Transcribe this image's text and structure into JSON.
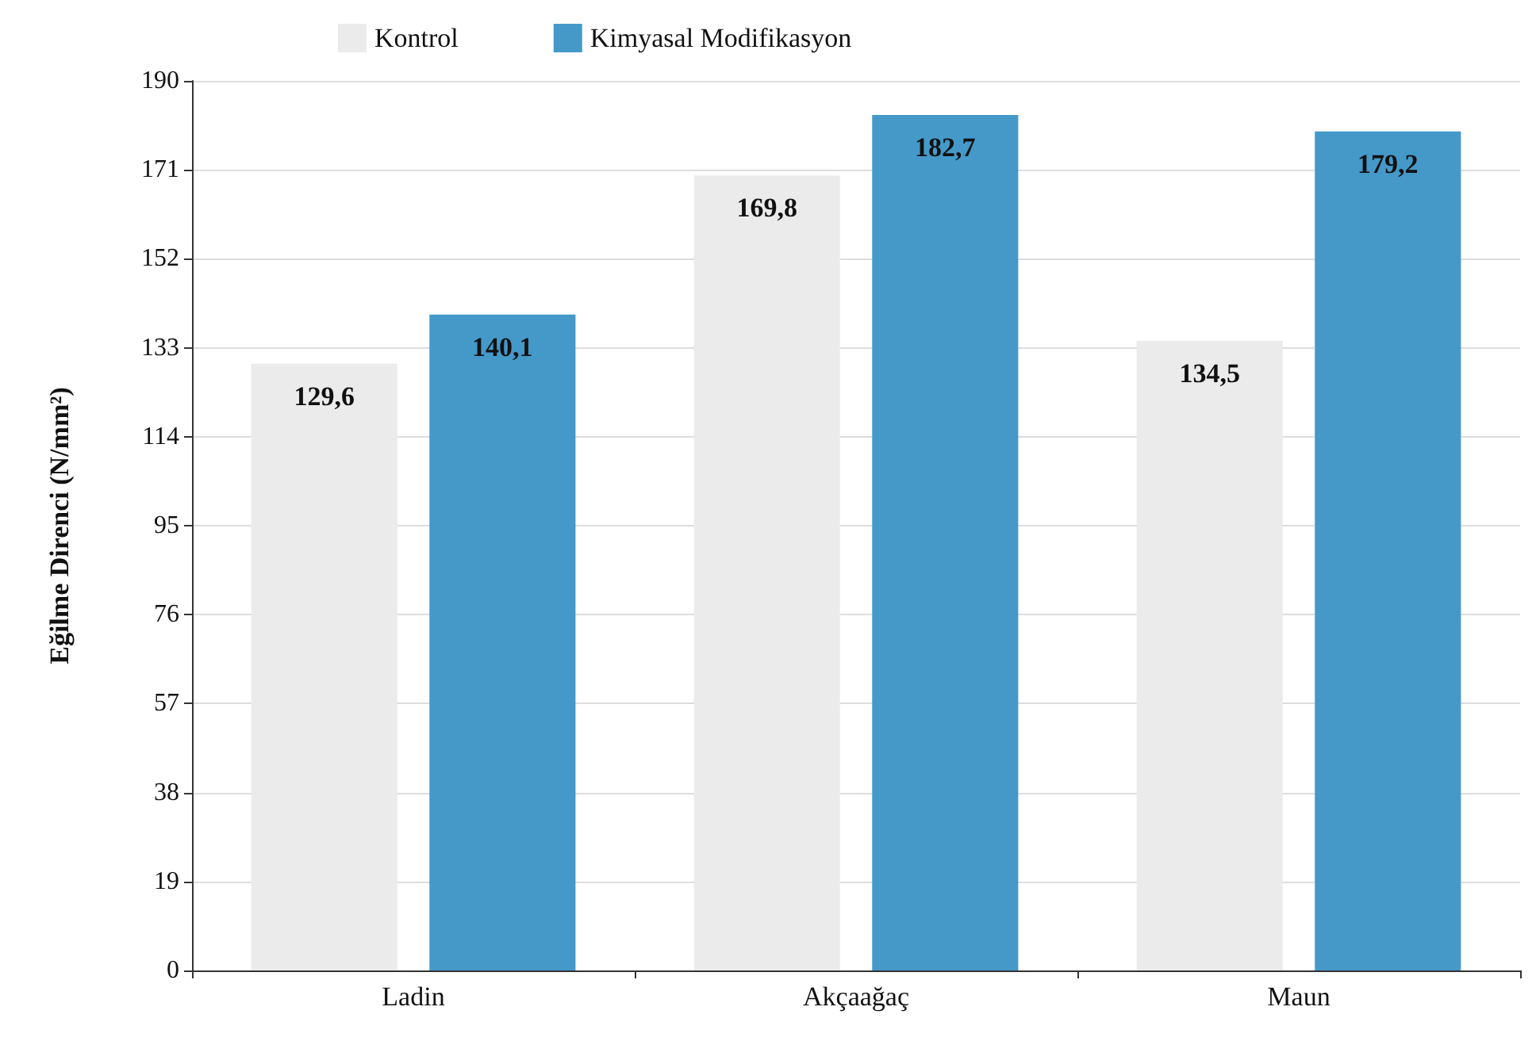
{
  "chart_data": {
    "type": "bar",
    "ylabel": "Eğilme Direnci (N/mm²)",
    "categories": [
      "Ladin",
      "Akçaağaç",
      "Maun"
    ],
    "series": [
      {
        "name": "Kontrol",
        "color": "#ebebeb",
        "values": [
          129.6,
          169.8,
          134.5
        ],
        "value_labels": [
          "129,6",
          "169,8",
          "134,5"
        ]
      },
      {
        "name": "Kimyasal Modifikasyon",
        "color": "#4499c9",
        "values": [
          140.1,
          182.7,
          179.2
        ],
        "value_labels": [
          "140,1",
          "182,7",
          "179,2"
        ]
      }
    ],
    "ylim": [
      0,
      190
    ],
    "yticks": [
      0,
      19,
      38,
      57,
      76,
      95,
      114,
      133,
      152,
      171,
      190
    ],
    "grid": "y",
    "legend": "top"
  }
}
